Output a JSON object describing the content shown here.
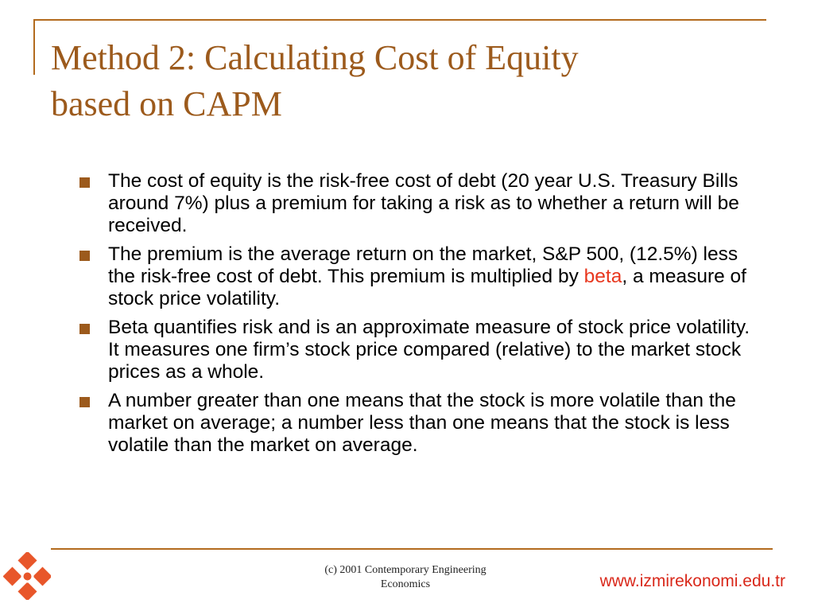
{
  "slide": {
    "title_line1": "Method 2: Calculating Cost of Equity",
    "title_line2": "based on CAPM"
  },
  "bullets": [
    {
      "text": "The cost of equity is the risk-free cost of debt (20 year U.S. Treasury Bills around 7%) plus a premium for taking a risk as to whether a return will be received."
    },
    {
      "text_before": "The premium is the average return on the market, S&P 500, (12.5%) less the risk-free cost of debt. This premium is multiplied by ",
      "highlight": "beta",
      "text_after": ", a measure of stock price volatility."
    },
    {
      "text": "Beta quantifies risk and is an approximate measure of stock price volatility. It measures one firm’s stock price compared (relative) to the market stock prices as a whole."
    },
    {
      "text": "A number greater than one means that the stock is more volatile than the market on average; a number less than one means that the stock is less volatile than the market on average."
    }
  ],
  "footer": {
    "copyright_line1": "(c) 2001 Contemporary Engineering",
    "copyright_line2": "Economics",
    "url": "www.izmirekonomi.edu.tr"
  },
  "colors": {
    "accent": "#9c5a1c",
    "highlight": "#e8371e",
    "url": "#d9281a",
    "logo": "#e8562a"
  },
  "icons": {
    "logo": "ieu-logo-icon",
    "bullet": "square-bullet-icon"
  }
}
